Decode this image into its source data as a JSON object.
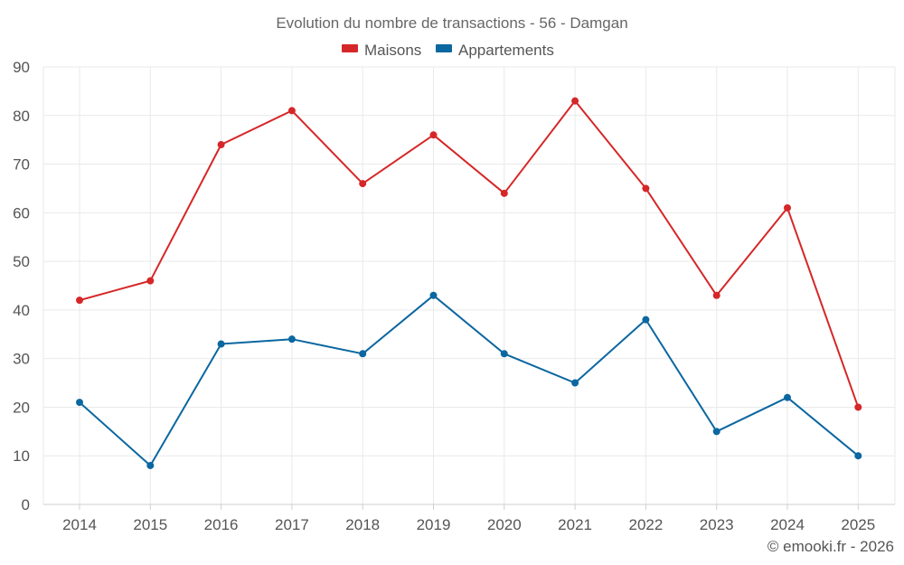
{
  "chart_data": {
    "type": "line",
    "title": "Evolution du nombre de transactions - 56 - Damgan",
    "categories": [
      "2014",
      "2015",
      "2016",
      "2017",
      "2018",
      "2019",
      "2020",
      "2021",
      "2022",
      "2023",
      "2024",
      "2025"
    ],
    "series": [
      {
        "name": "Maisons",
        "color": "#d62728",
        "values": [
          42,
          46,
          74,
          81,
          66,
          76,
          64,
          83,
          65,
          43,
          61,
          20
        ]
      },
      {
        "name": "Appartements",
        "color": "#0b67a0",
        "values": [
          21,
          8,
          33,
          34,
          31,
          43,
          31,
          25,
          38,
          15,
          22,
          10
        ]
      }
    ],
    "ylim": [
      0,
      90
    ],
    "yticks": [
      "0",
      "10",
      "20",
      "30",
      "40",
      "50",
      "60",
      "70",
      "80",
      "90"
    ],
    "xlabel": "",
    "ylabel": "",
    "grid": true,
    "legend_position": "top-center",
    "credit": "© emooki.fr - 2026"
  }
}
